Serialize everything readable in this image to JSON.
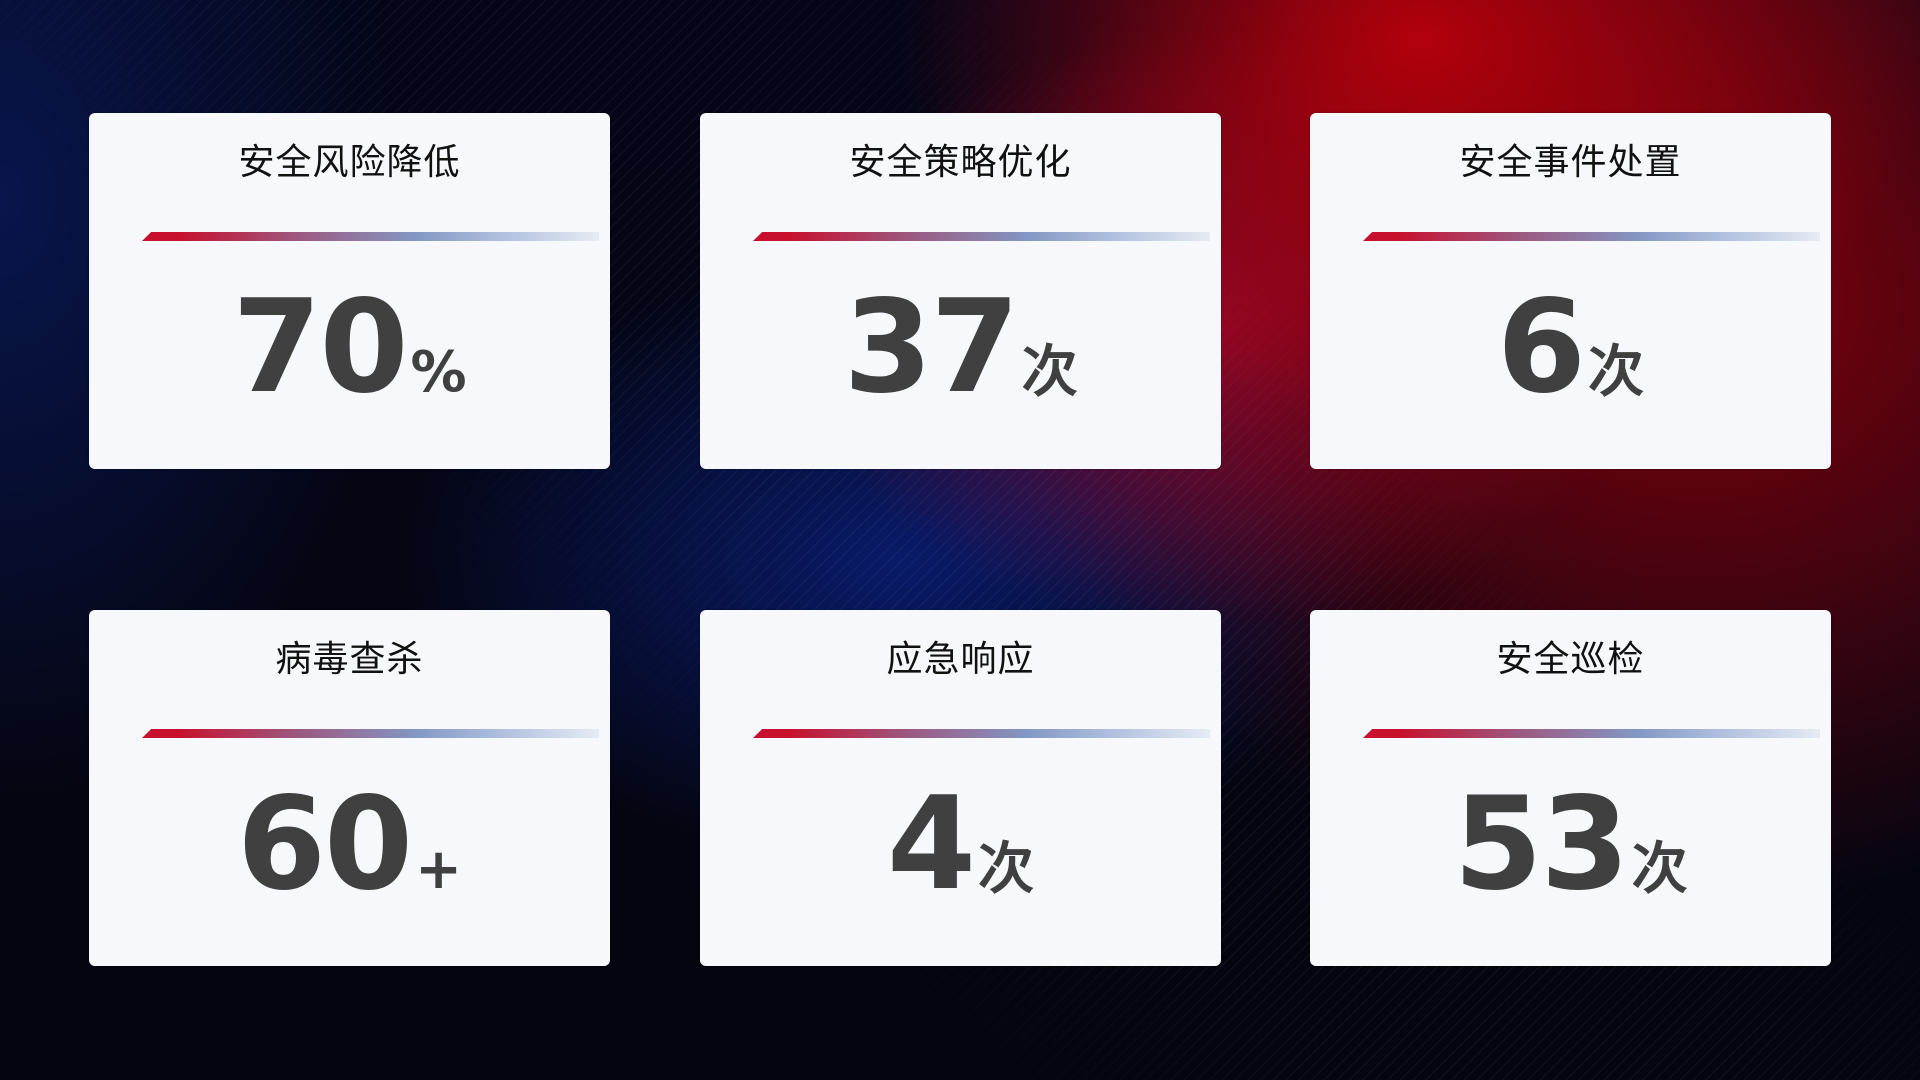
{
  "cards": [
    {
      "title": "安全风险降低",
      "value": "70",
      "unit": "%"
    },
    {
      "title": "安全策略优化",
      "value": "37",
      "unit": "次"
    },
    {
      "title": "安全事件处置",
      "value": "6",
      "unit": "次"
    },
    {
      "title": "病毒查杀",
      "value": "60",
      "unit": "+"
    },
    {
      "title": "应急响应",
      "value": "4",
      "unit": "次"
    },
    {
      "title": "安全巡检",
      "value": "53",
      "unit": "次"
    }
  ],
  "colors": {
    "accent_red": "#c8102e",
    "accent_blue": "#8397c4",
    "card_bg": "#f6f8fc",
    "value_text": "#404040"
  }
}
